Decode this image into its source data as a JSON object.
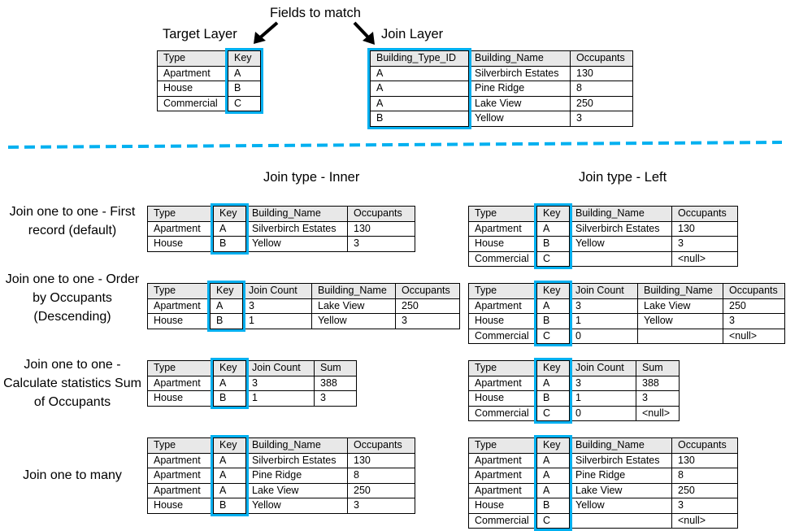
{
  "colors": {
    "highlight": "#00b0f0",
    "header_bg": "#e8e8e8",
    "divider": "#00b0f0"
  },
  "top": {
    "fields_label": "Fields to match",
    "target_label": "Target Layer",
    "join_label": "Join Layer"
  },
  "section": {
    "inner_label": "Join type - Inner",
    "left_label": "Join type - Left"
  },
  "rows": [
    {
      "label": "Join one to one - First record (default)"
    },
    {
      "label": "Join one to one - Order by Occupants (Descending)"
    },
    {
      "label": "Join one to one - Calculate statistics Sum of Occupants"
    },
    {
      "label": "Join one to many"
    }
  ],
  "tables": {
    "target": {
      "header": [
        "Type",
        "Key"
      ],
      "rows": [
        [
          "Apartment",
          "A"
        ],
        [
          "House",
          "B"
        ],
        [
          "Commercial",
          "C"
        ]
      ]
    },
    "join": {
      "header": [
        "Building_Type_ID",
        "Building_Name",
        "Occupants"
      ],
      "rows": [
        [
          "A",
          "Silverbirch Estates",
          "130"
        ],
        [
          "A",
          "Pine Ridge",
          "8"
        ],
        [
          "A",
          "Lake View",
          "250"
        ],
        [
          "B",
          "Yellow",
          "3"
        ]
      ]
    },
    "inner1": {
      "header": [
        "Type",
        "Key",
        "Building_Name",
        "Occupants"
      ],
      "rows": [
        [
          "Apartment",
          "A",
          "Silverbirch Estates",
          "130"
        ],
        [
          "House",
          "B",
          "Yellow",
          "3"
        ]
      ]
    },
    "left1": {
      "header": [
        "Type",
        "Key",
        "Building_Name",
        "Occupants"
      ],
      "rows": [
        [
          "Apartment",
          "A",
          "Silverbirch Estates",
          "130"
        ],
        [
          "House",
          "B",
          "Yellow",
          "3"
        ],
        [
          "Commercial",
          "C",
          "",
          "<null>"
        ]
      ]
    },
    "inner2": {
      "header": [
        "Type",
        "Key",
        "Join Count",
        "Building_Name",
        "Occupants"
      ],
      "rows": [
        [
          "Apartment",
          "A",
          "3",
          "Lake View",
          "250"
        ],
        [
          "House",
          "B",
          "1",
          "Yellow",
          "3"
        ]
      ]
    },
    "left2": {
      "header": [
        "Type",
        "Key",
        "Join Count",
        "Building_Name",
        "Occupants"
      ],
      "rows": [
        [
          "Apartment",
          "A",
          "3",
          "Lake View",
          "250"
        ],
        [
          "House",
          "B",
          "1",
          "Yellow",
          "3"
        ],
        [
          "Commercial",
          "C",
          "0",
          "",
          "<null>"
        ]
      ]
    },
    "inner3": {
      "header": [
        "Type",
        "Key",
        "Join Count",
        "Sum"
      ],
      "rows": [
        [
          "Apartment",
          "A",
          "3",
          "388"
        ],
        [
          "House",
          "B",
          "1",
          "3"
        ]
      ]
    },
    "left3": {
      "header": [
        "Type",
        "Key",
        "Join Count",
        "Sum"
      ],
      "rows": [
        [
          "Apartment",
          "A",
          "3",
          "388"
        ],
        [
          "House",
          "B",
          "1",
          "3"
        ],
        [
          "Commercial",
          "C",
          "0",
          "<null>"
        ]
      ]
    },
    "inner4": {
      "header": [
        "Type",
        "Key",
        "Building_Name",
        "Occupants"
      ],
      "rows": [
        [
          "Apartment",
          "A",
          "Silverbirch Estates",
          "130"
        ],
        [
          "Apartment",
          "A",
          "Pine Ridge",
          "8"
        ],
        [
          "Apartment",
          "A",
          "Lake View",
          "250"
        ],
        [
          "House",
          "B",
          "Yellow",
          "3"
        ]
      ]
    },
    "left4": {
      "header": [
        "Type",
        "Key",
        "Building_Name",
        "Occupants"
      ],
      "rows": [
        [
          "Apartment",
          "A",
          "Silverbirch Estates",
          "130"
        ],
        [
          "Apartment",
          "A",
          "Pine Ridge",
          "8"
        ],
        [
          "Apartment",
          "A",
          "Lake View",
          "250"
        ],
        [
          "House",
          "B",
          "Yellow",
          "3"
        ],
        [
          "Commercial",
          "C",
          "",
          "<null>"
        ]
      ]
    }
  }
}
